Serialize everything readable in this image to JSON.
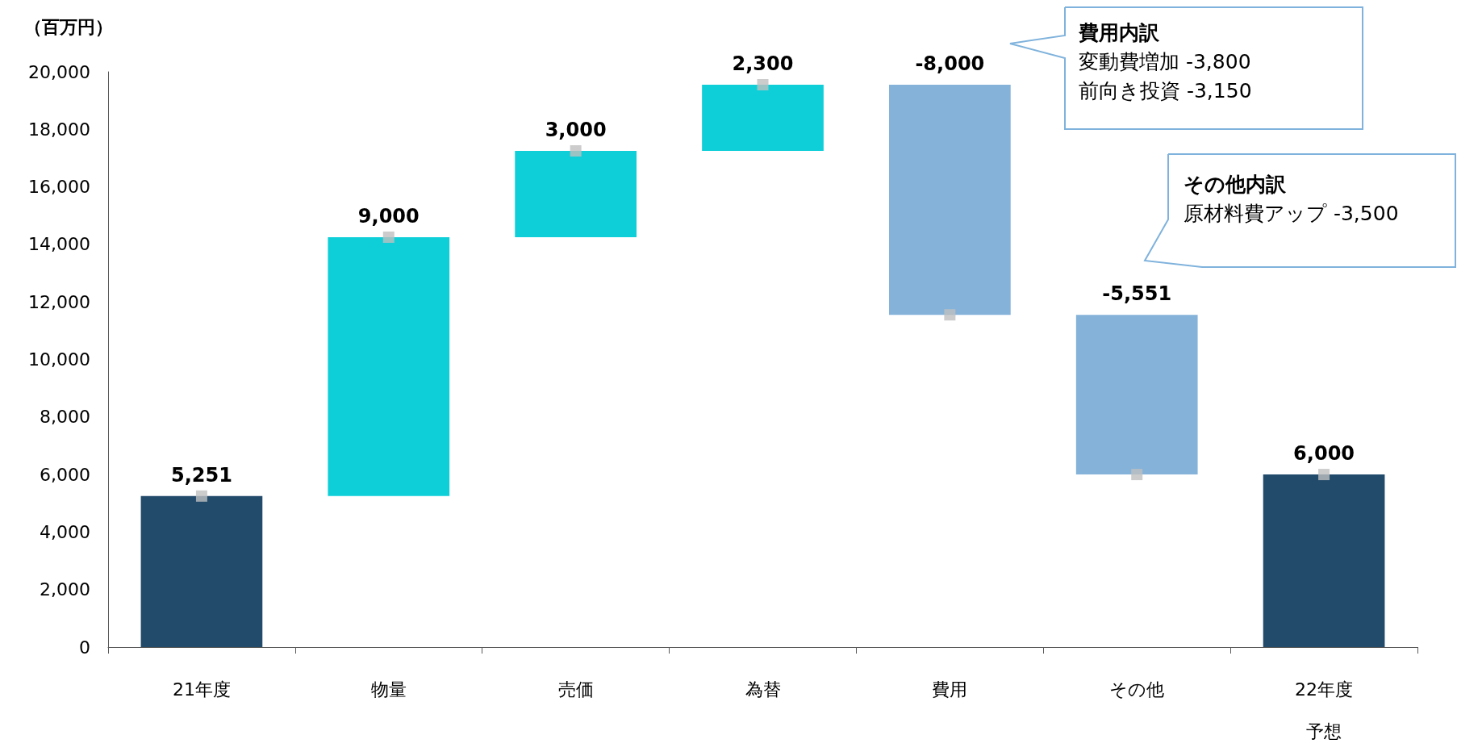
{
  "chart_data": {
    "type": "bar",
    "ylabel": "（百万円）",
    "categories": [
      "21年度",
      "物量",
      "売価",
      "為替",
      "費用",
      "その他",
      "22年度予想"
    ],
    "series": [
      {
        "values": [
          5251,
          9000,
          3000,
          2300,
          -8000,
          -5551,
          6000
        ],
        "base": [
          0,
          5251,
          14251,
          17251,
          19551,
          11551,
          0
        ],
        "colors": [
          "#214a6b",
          "#0ecfd8",
          "#0ecfd8",
          "#0ecfd8",
          "#84b2d9",
          "#84b2d9",
          "#214a6b"
        ],
        "value_labels": [
          "5,251",
          "9,000",
          "3,000",
          "2,300",
          "-8,000",
          "-5,551",
          "6,000"
        ]
      },
      {
        "type": "scatter",
        "x": [
          "21年度",
          "物量",
          "売価",
          "為替",
          "費用",
          "その他",
          "22年度予想"
        ],
        "values": [
          5251,
          14251,
          17251,
          19551,
          11551,
          6000,
          6000
        ],
        "color": "#bfbfbf",
        "marker": "square"
      }
    ],
    "ylim": [
      0,
      20000
    ],
    "yticks": [
      {
        "value": 0,
        "label": "0"
      },
      {
        "value": 2000,
        "label": "2,000"
      },
      {
        "value": 4000,
        "label": "4,000"
      },
      {
        "value": 6000,
        "label": "6,000"
      },
      {
        "value": 8000,
        "label": "8,000"
      },
      {
        "value": 10000,
        "label": "10,000"
      },
      {
        "value": 12000,
        "label": "12,000"
      },
      {
        "value": 14000,
        "label": "14,000"
      },
      {
        "value": 16000,
        "label": "16,000"
      },
      {
        "value": 18000,
        "label": "18,000"
      },
      {
        "value": 20000,
        "label": "20,000"
      }
    ],
    "grid": false,
    "annotations": [
      "費用内訳",
      "変動費増加 -3,800",
      "前向き投資 -3,150",
      "その他内訳",
      "原材料費アップ -3,500"
    ]
  }
}
